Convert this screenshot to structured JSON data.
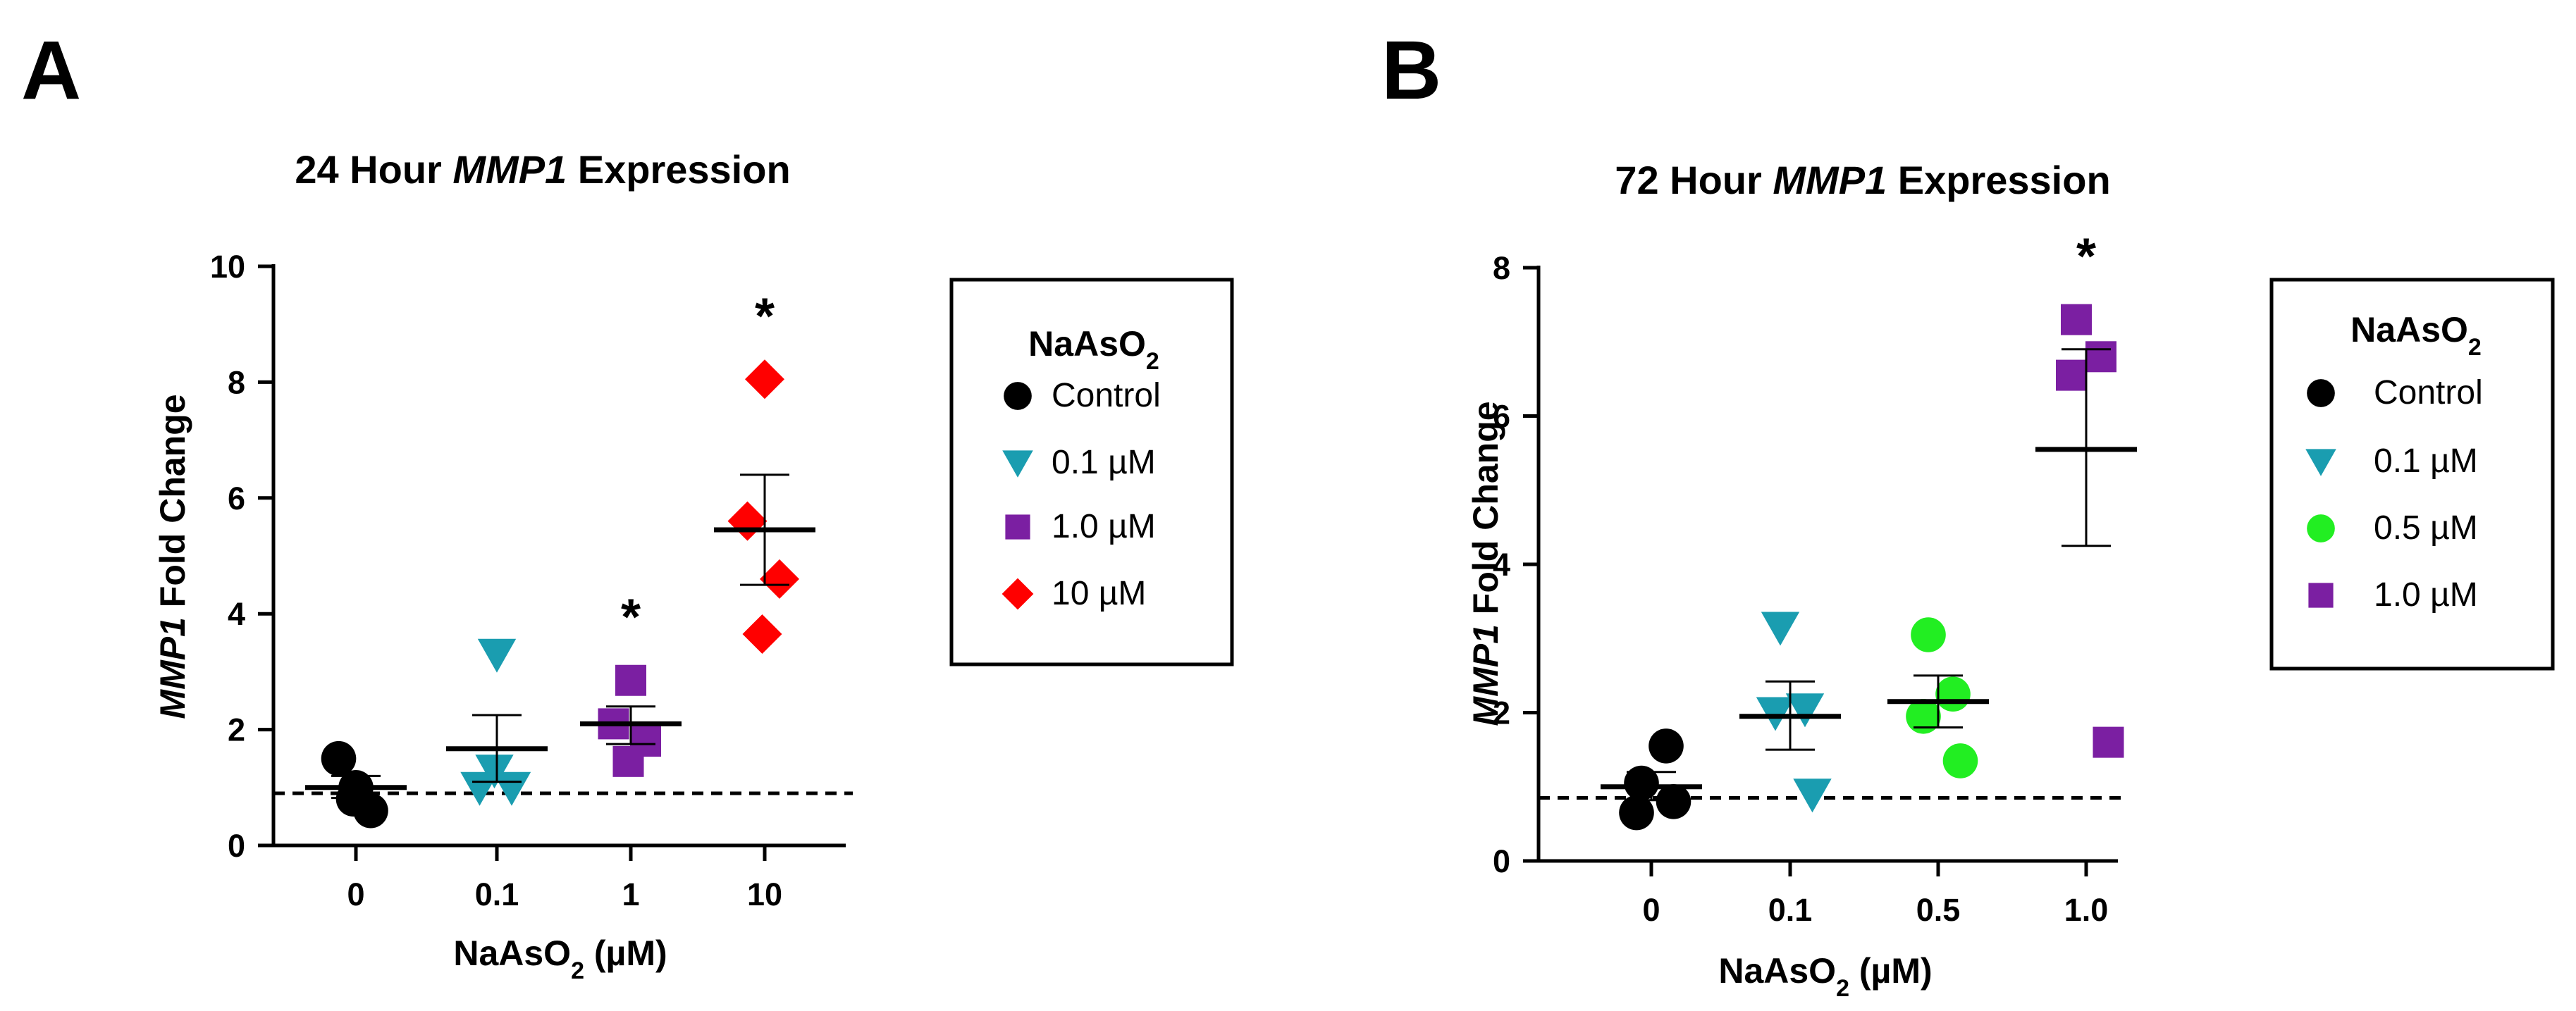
{
  "chart_data": [
    {
      "panel": "A",
      "type": "scatter",
      "title": {
        "pre": "24 Hour ",
        "gene": "MMP1",
        "post": " Expression"
      },
      "xlabel": {
        "base": "NaAsO",
        "sub": "2",
        "post": " (µM)"
      },
      "ylabel": {
        "gene": "MMP1",
        "post": " Fold Change"
      },
      "ylim": [
        0,
        10
      ],
      "yticks": [
        0,
        2,
        4,
        6,
        8,
        10
      ],
      "baseline": 0.9,
      "categories": [
        "0",
        "0.1",
        "1",
        "10"
      ],
      "series": [
        {
          "name": "Control",
          "category": "0",
          "marker": "circle",
          "color": "#000000",
          "points": [
            1.0,
            1.5,
            0.6,
            0.8
          ],
          "mean": 1.0,
          "sem": [
            0.82,
            1.2
          ],
          "significant": false
        },
        {
          "name": "0.1 µM",
          "category": "0.1",
          "marker": "triangle-down",
          "color": "#1a9db0",
          "points": [
            3.3,
            1.0,
            1.0,
            1.3
          ],
          "mean": 1.67,
          "sem": [
            1.1,
            2.25
          ],
          "significant": false
        },
        {
          "name": "1.0 µM",
          "category": "1",
          "marker": "square",
          "color": "#7b1fa2",
          "points": [
            2.85,
            2.1,
            1.8,
            1.45
          ],
          "mean": 2.1,
          "sem": [
            1.75,
            2.4
          ],
          "significant": true
        },
        {
          "name": "10 µM",
          "category": "10",
          "marker": "diamond",
          "color": "#ff0000",
          "points": [
            8.05,
            5.6,
            4.6,
            3.65
          ],
          "mean": 5.45,
          "sem": [
            4.5,
            6.4
          ],
          "significant": true
        }
      ],
      "legend": {
        "title_base": "NaAsO",
        "title_sub": "2",
        "placement": "right"
      }
    },
    {
      "panel": "B",
      "type": "scatter",
      "title": {
        "pre": "72 Hour ",
        "gene": "MMP1",
        "post": " Expression"
      },
      "xlabel": {
        "base": "NaAsO",
        "sub": "2",
        "post": " (µM)"
      },
      "ylabel": {
        "gene": "MMP1",
        "post": " Fold Change"
      },
      "ylim": [
        0,
        8
      ],
      "yticks": [
        0,
        2,
        4,
        6,
        8
      ],
      "baseline": 0.85,
      "categories": [
        "0",
        "0.1",
        "0.5",
        "1.0"
      ],
      "series": [
        {
          "name": "Control",
          "category": "0",
          "marker": "circle",
          "color": "#000000",
          "points": [
            1.05,
            1.55,
            0.65,
            0.8
          ],
          "mean": 1.0,
          "sem": [
            0.82,
            1.2
          ],
          "significant": false
        },
        {
          "name": "0.1 µM",
          "category": "0.1",
          "marker": "triangle-down",
          "color": "#1a9db0",
          "points": [
            3.15,
            2.05,
            2.0,
            0.9
          ],
          "mean": 1.95,
          "sem": [
            1.5,
            2.42
          ],
          "significant": false
        },
        {
          "name": "0.5 µM",
          "category": "0.5",
          "marker": "circle",
          "color": "#22ee22",
          "points": [
            3.05,
            2.25,
            1.95,
            1.35
          ],
          "mean": 2.15,
          "sem": [
            1.8,
            2.5
          ],
          "significant": false
        },
        {
          "name": "1.0 µM",
          "category": "1.0",
          "marker": "square",
          "color": "#7b1fa2",
          "points": [
            7.3,
            6.8,
            6.55,
            1.6
          ],
          "mean": 5.55,
          "sem": [
            4.25,
            6.9
          ],
          "significant": true
        }
      ],
      "legend": {
        "title_base": "NaAsO",
        "title_sub": "2",
        "placement": "right"
      }
    }
  ],
  "significance_mark": "*"
}
